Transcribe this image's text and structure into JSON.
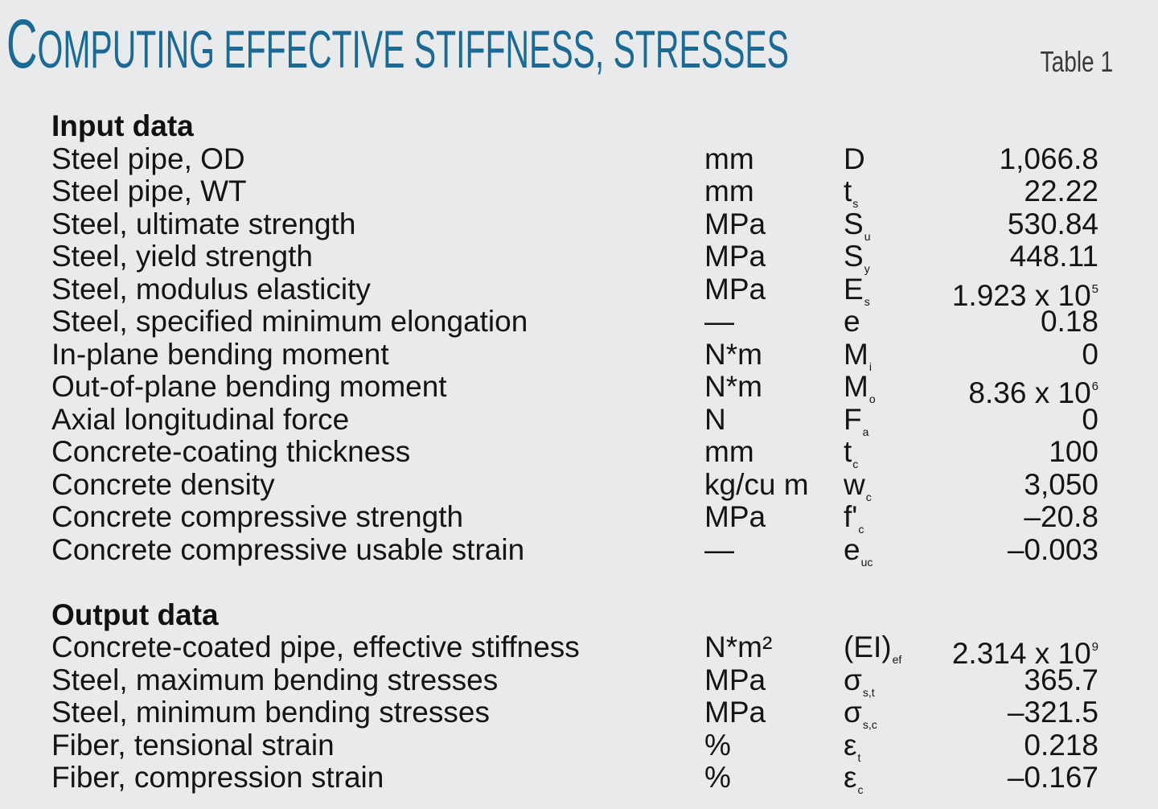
{
  "title": {
    "part1_cap": "C",
    "part1_rest": "OMPUTING EFFECTIVE STIFFNESS, STRESSES"
  },
  "table_label": "Table 1",
  "sections": {
    "input": {
      "heading": "Input data",
      "rows": [
        {
          "label": "Steel pipe, OD",
          "unit": "mm",
          "symbol": "D",
          "symbol_sub": "",
          "value": "1,066.8",
          "value_exp": ""
        },
        {
          "label": "Steel pipe, WT",
          "unit": "mm",
          "symbol": "t",
          "symbol_sub": "s",
          "value": "22.22",
          "value_exp": ""
        },
        {
          "label": "Steel, ultimate strength",
          "unit": "MPa",
          "symbol": "S",
          "symbol_sub": "u",
          "value": "530.84",
          "value_exp": ""
        },
        {
          "label": "Steel, yield strength",
          "unit": "MPa",
          "symbol": "S",
          "symbol_sub": "y",
          "value": "448.11",
          "value_exp": ""
        },
        {
          "label": "Steel, modulus elasticity",
          "unit": "MPa",
          "symbol": "E",
          "symbol_sub": "s",
          "value": "1.923 x 10",
          "value_exp": "5"
        },
        {
          "label": "Steel, specified minimum elongation",
          "unit": "—",
          "symbol": "e",
          "symbol_sub": "",
          "value": "0.18",
          "value_exp": ""
        },
        {
          "label": "In-plane bending moment",
          "unit": "N*m",
          "symbol": "M",
          "symbol_sub": "i",
          "value": "0",
          "value_exp": ""
        },
        {
          "label": "Out-of-plane bending moment",
          "unit": "N*m",
          "symbol": "M",
          "symbol_sub": "o",
          "value": "8.36 x 10",
          "value_exp": "6"
        },
        {
          "label": "Axial longitudinal force",
          "unit": "N",
          "symbol": "F",
          "symbol_sub": "a",
          "value": "0",
          "value_exp": ""
        },
        {
          "label": "Concrete-coating thickness",
          "unit": "mm",
          "symbol": "t",
          "symbol_sub": "c",
          "value": "100",
          "value_exp": ""
        },
        {
          "label": "Concrete density",
          "unit": "kg/cu m",
          "symbol": "w",
          "symbol_sub": "c",
          "value": "3,050",
          "value_exp": ""
        },
        {
          "label": "Concrete compressive strength",
          "unit": "MPa",
          "symbol": "f'",
          "symbol_sub": "c",
          "value": "–20.8",
          "value_exp": ""
        },
        {
          "label": "Concrete compressive usable strain",
          "unit": "—",
          "symbol": "e",
          "symbol_sub": "uc",
          "value": "–0.003",
          "value_exp": ""
        }
      ]
    },
    "output": {
      "heading": "Output data",
      "rows": [
        {
          "label": "Concrete-coated pipe, effective stiffness",
          "unit": "N*m²",
          "symbol": "(EI)",
          "symbol_sub": "ef",
          "value": "2.314 x 10",
          "value_exp": "9"
        },
        {
          "label": "Steel, maximum bending stresses",
          "unit": "MPa",
          "symbol": "σ",
          "symbol_sub": "s,t",
          "value": "365.7",
          "value_exp": ""
        },
        {
          "label": "Steel, minimum bending stresses",
          "unit": "MPa",
          "symbol": "σ",
          "symbol_sub": "s,c",
          "value": "–321.5",
          "value_exp": ""
        },
        {
          "label": "Fiber, tensional strain",
          "unit": "%",
          "symbol": "ε",
          "symbol_sub": "t",
          "value": "0.218",
          "value_exp": ""
        },
        {
          "label": "Fiber, compression strain",
          "unit": "%",
          "symbol": "ε",
          "symbol_sub": "c",
          "value": "–0.167",
          "value_exp": ""
        }
      ]
    }
  }
}
